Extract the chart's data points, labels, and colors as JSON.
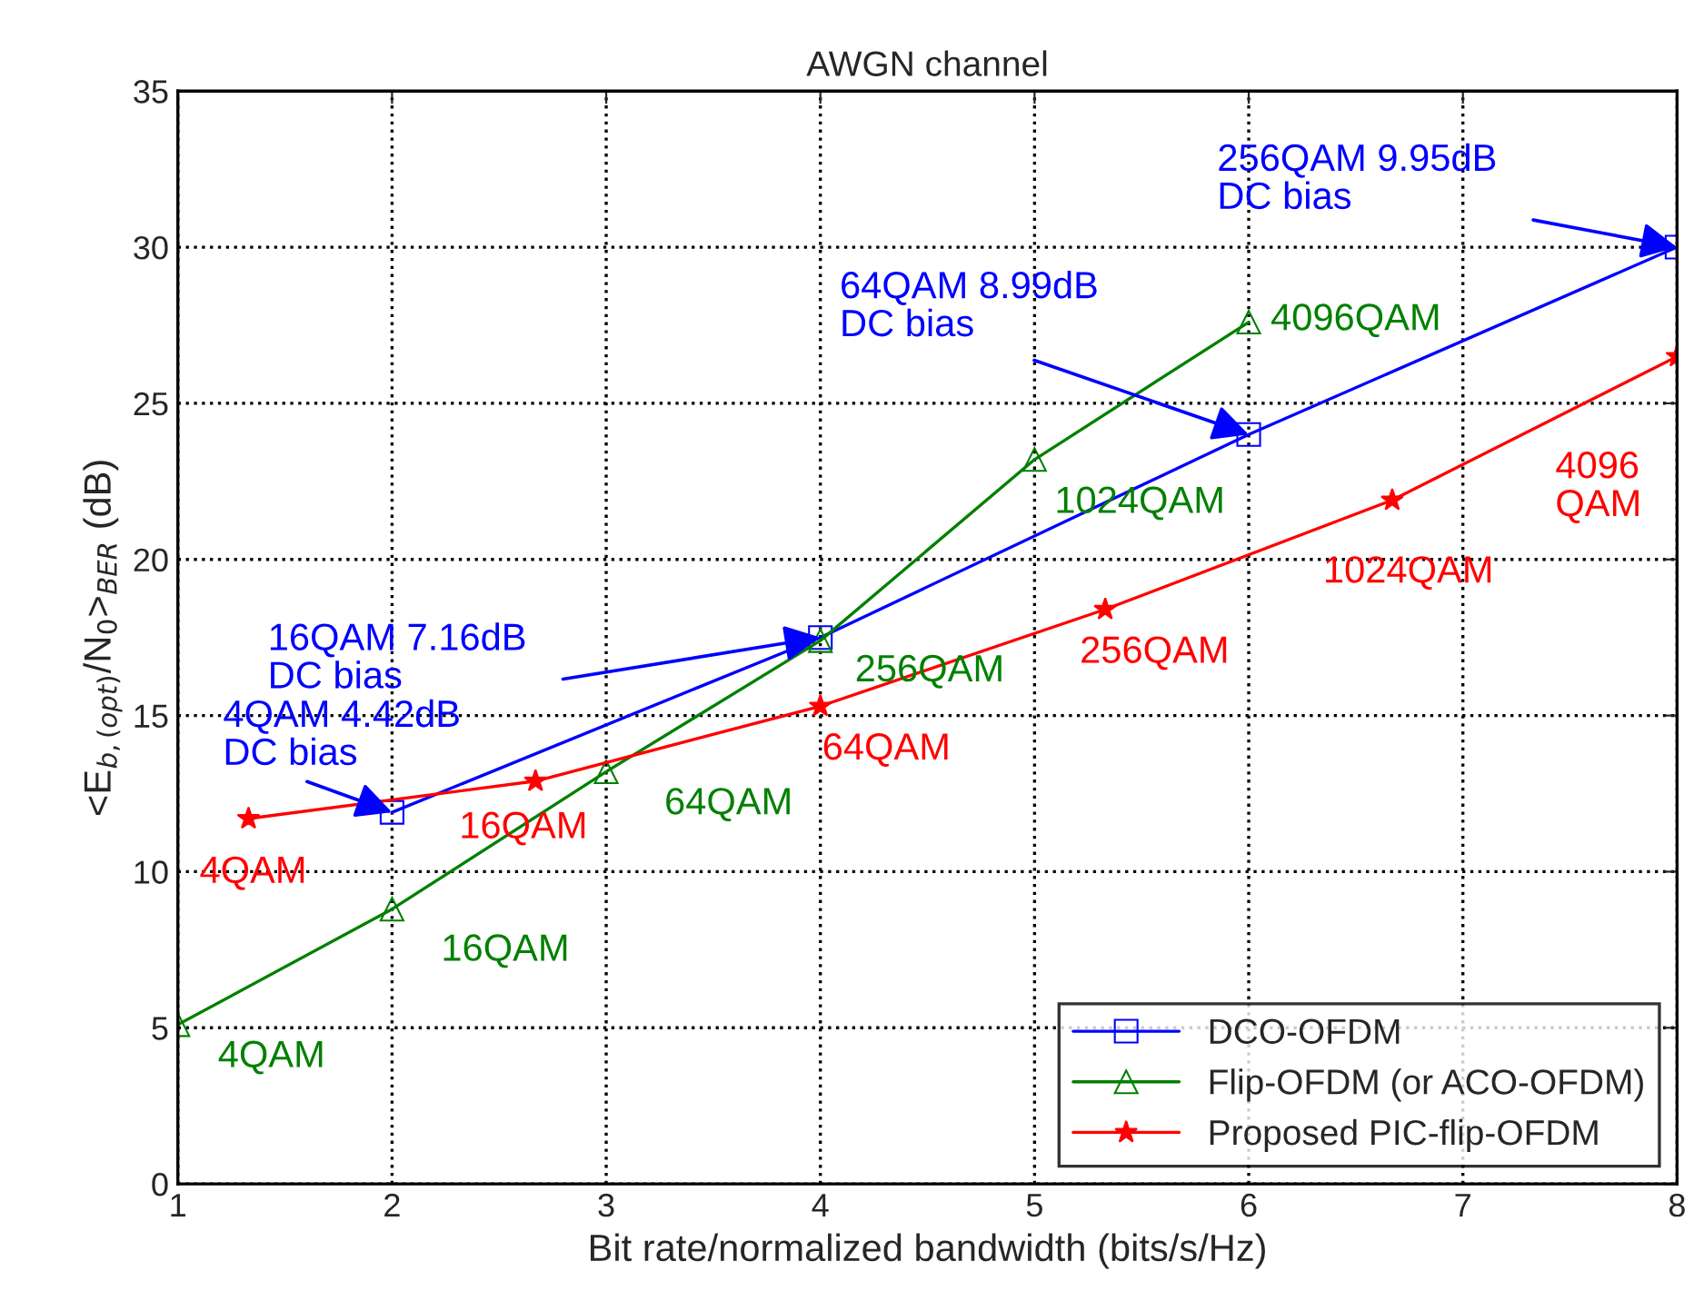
{
  "chart_data": {
    "type": "line",
    "title": "AWGN channel",
    "xlabel": "Bit rate/normalized bandwidth (bits/s/Hz)",
    "ylabel": "<E$_{b,(opt)}$/N$_{0}$>$_{BER}$ (dB)",
    "xlim": [
      1,
      8
    ],
    "xticks": [
      1,
      2,
      3,
      4,
      5,
      6,
      7,
      8
    ],
    "ylim": [
      0,
      35
    ],
    "yticks": [
      0,
      5,
      10,
      15,
      20,
      25,
      30,
      35
    ],
    "grid": true,
    "legend": "bottom right",
    "series": [
      {
        "name": "DCO-OFDM",
        "color": "#0000ff",
        "marker": "square",
        "x": [
          2,
          4,
          6,
          8
        ],
        "values": [
          11.9,
          17.5,
          24.0,
          30.0
        ]
      },
      {
        "name": "Flip-OFDM (or ACO-OFDM)",
        "color": "#008000",
        "marker": "triangle",
        "x": [
          1,
          2,
          3,
          4,
          5,
          6
        ],
        "values": [
          5.1,
          8.8,
          13.2,
          17.4,
          23.2,
          27.6
        ]
      },
      {
        "name": "Proposed PIC-flip-OFDM",
        "color": "#ff0000",
        "marker": "star",
        "x": [
          1.33,
          2.67,
          4,
          5.33,
          6.67,
          8
        ],
        "values": [
          11.7,
          12.9,
          15.3,
          18.4,
          21.9,
          26.5
        ]
      }
    ],
    "annotations": [
      {
        "text": "4QAM 4.42dB\nDC bias",
        "x": 2,
        "y": 11.9
      },
      {
        "text": "16QAM 7.16dB\nDC bias",
        "x": 4,
        "y": 17.5
      },
      {
        "text": "64QAM 8.99dB\nDC bias",
        "x": 6,
        "y": 24.0
      },
      {
        "text": "256QAM 9.95dB\nDC bias",
        "x": 8,
        "y": 30.0
      },
      {
        "text": "4QAM",
        "x": 1,
        "y": 5.1
      },
      {
        "text": "16QAM",
        "x": 2,
        "y": 8.8
      },
      {
        "text": "64QAM",
        "x": 3,
        "y": 13.2
      },
      {
        "text": "256QAM",
        "x": 4,
        "y": 17.4
      },
      {
        "text": "1024QAM",
        "x": 5,
        "y": 23.2
      },
      {
        "text": "4096QAM",
        "x": 6,
        "y": 27.6
      },
      {
        "text": "4QAM",
        "x": 1.33,
        "y": 11.7
      },
      {
        "text": "16QAM",
        "x": 2.67,
        "y": 12.9
      },
      {
        "text": "64QAM",
        "x": 4,
        "y": 15.3
      },
      {
        "text": "256QAM",
        "x": 5.33,
        "y": 18.4
      },
      {
        "text": "1024QAM",
        "x": 6.67,
        "y": 21.9
      },
      {
        "text": "4096\nQAM",
        "x": 8,
        "y": 26.5
      }
    ]
  }
}
